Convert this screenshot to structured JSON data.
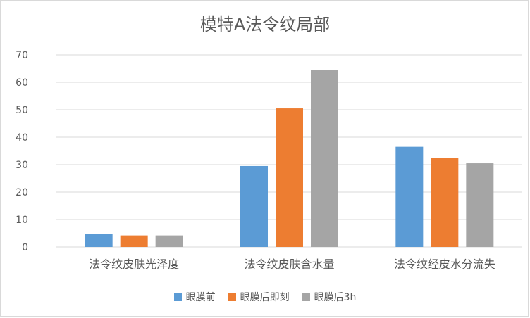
{
  "chart_data": {
    "type": "bar",
    "title": "模特A法令纹局部",
    "xlabel": "",
    "ylabel": "",
    "categories": [
      "法令纹皮肤光泽度",
      "法令纹皮肤含水量",
      "法令纹经皮水分流失"
    ],
    "series": [
      {
        "name": "眼膜前",
        "color": "#5b9bd5",
        "values": [
          4.7,
          29.5,
          36.5
        ]
      },
      {
        "name": "眼膜后即刻",
        "color": "#ed7d31",
        "values": [
          4.2,
          50.5,
          32.5
        ]
      },
      {
        "name": "眼膜后3h",
        "color": "#a5a5a5",
        "values": [
          4.2,
          64.5,
          30.5
        ]
      }
    ],
    "ylim": [
      0,
      70
    ],
    "yticks": [
      0,
      10,
      20,
      30,
      40,
      50,
      60,
      70
    ],
    "grid": true,
    "legend_position": "bottom"
  }
}
